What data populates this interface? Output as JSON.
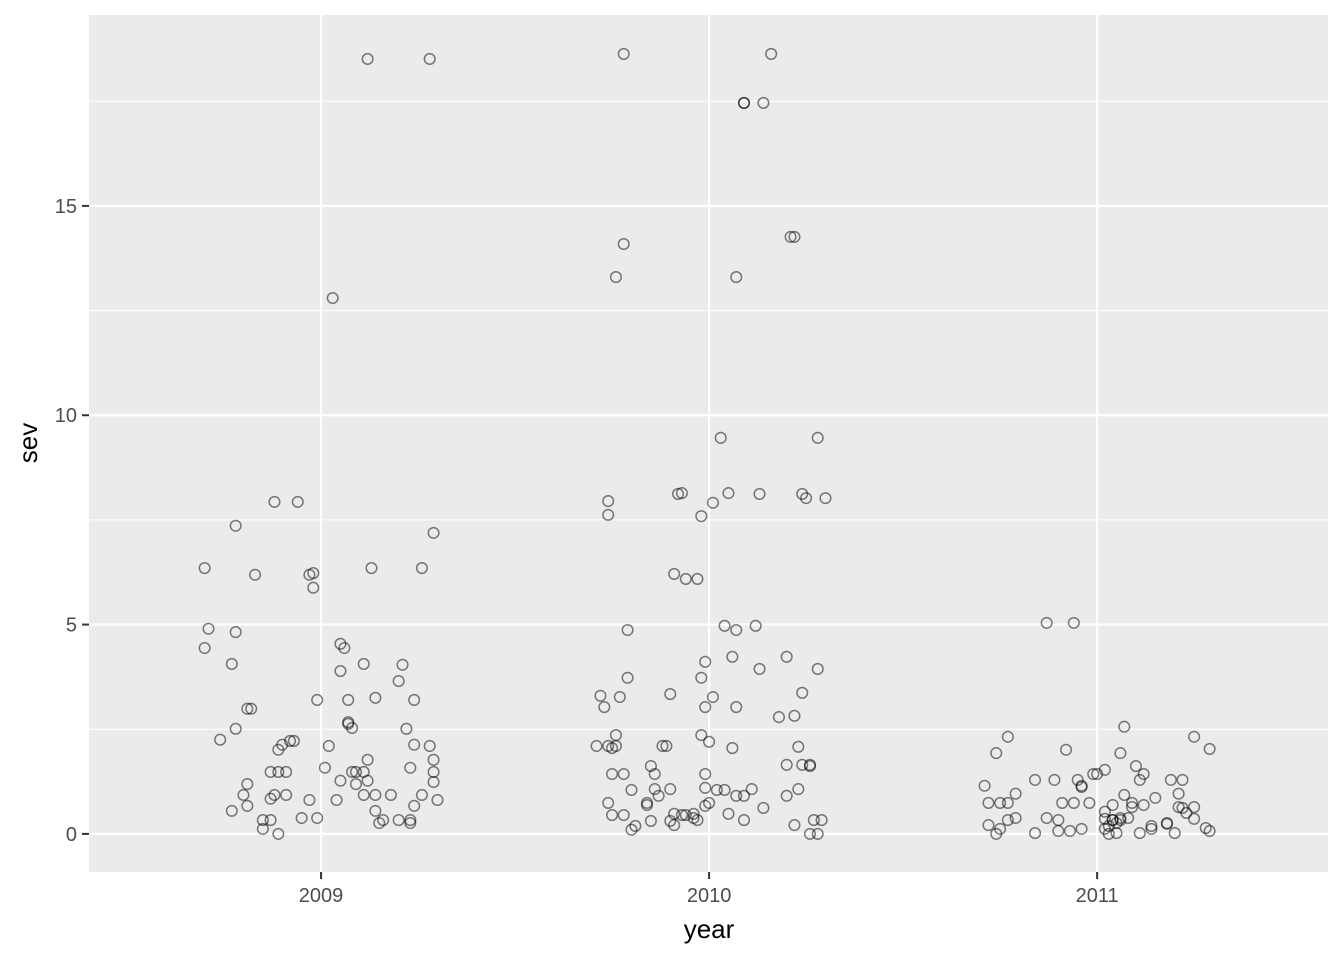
{
  "chart_data": {
    "type": "scatter",
    "x_label": "year",
    "y_label": "sev",
    "xlim": [
      2008.402,
      2011.595
    ],
    "ylim": [
      -0.91,
      19.56
    ],
    "xticks": [
      2009,
      2010,
      2011
    ],
    "yticks": [
      0,
      5,
      10,
      15
    ],
    "y_minor_ticks": [
      2.5,
      7.5,
      12.5,
      17.5
    ],
    "grid": true,
    "color": "#000000",
    "x": [
      2008.7,
      2008.7,
      2008.71,
      2008.74,
      2008.77,
      2008.78,
      2008.78,
      2008.78,
      2008.77,
      2008.8,
      2008.81,
      2008.82,
      2008.81,
      2008.81,
      2008.83,
      2008.85,
      2008.85,
      2008.87,
      2008.87,
      2008.87,
      2008.88,
      2008.88,
      2008.89,
      2008.89,
      2008.9,
      2008.89,
      2008.91,
      2008.91,
      2008.92,
      2008.93,
      2008.94,
      2008.95,
      2008.97,
      2008.97,
      2008.98,
      2008.98,
      2008.99,
      2008.99,
      2009.01,
      2009.02,
      2009.03,
      2009.04,
      2009.05,
      2009.05,
      2009.05,
      2009.06,
      2009.07,
      2009.07,
      2009.07,
      2009.08,
      2009.08,
      2009.09,
      2009.09,
      2009.11,
      2009.11,
      2009.12,
      2009.12,
      2009.13,
      2009.11,
      2009.12,
      2009.14,
      2009.14,
      2009.14,
      2009.15,
      2009.16,
      2009.18,
      2009.2,
      2009.2,
      2009.21,
      2009.22,
      2009.23,
      2009.23,
      2009.23,
      2009.24,
      2009.24,
      2009.24,
      2009.26,
      2009.26,
      2009.28,
      2009.29,
      2009.28,
      2009.29,
      2009.29,
      2009.29,
      2009.3,
      2009.71,
      2009.72,
      2009.73,
      2009.74,
      2009.74,
      2009.74,
      2009.74,
      2009.75,
      2009.75,
      2009.75,
      2009.76,
      2009.76,
      2009.77,
      2009.78,
      2009.78,
      2009.78,
      2009.78,
      2009.76,
      2009.79,
      2009.79,
      2009.8,
      2009.8,
      2009.81,
      2009.84,
      2009.84,
      2009.85,
      2009.85,
      2009.86,
      2009.86,
      2009.87,
      2009.88,
      2009.89,
      2009.9,
      2009.9,
      2009.9,
      2009.91,
      2009.91,
      2009.91,
      2009.92,
      2009.93,
      2009.93,
      2009.94,
      2009.94,
      2009.96,
      2009.96,
      2009.97,
      2009.97,
      2009.98,
      2009.98,
      2009.98,
      2009.99,
      2009.99,
      2009.99,
      2009.99,
      2009.99,
      2010.0,
      2010.0,
      2010.01,
      2010.01,
      2010.02,
      2010.03,
      2010.04,
      2010.04,
      2010.05,
      2010.05,
      2010.06,
      2010.06,
      2010.07,
      2010.07,
      2010.07,
      2010.07,
      2010.09,
      2010.09,
      2010.09,
      2010.09,
      2010.11,
      2010.12,
      2010.13,
      2010.13,
      2010.14,
      2010.14,
      2010.16,
      2010.18,
      2010.2,
      2010.2,
      2010.2,
      2010.21,
      2010.22,
      2010.22,
      2010.22,
      2010.23,
      2010.23,
      2010.24,
      2010.24,
      2010.24,
      2010.25,
      2010.26,
      2010.26,
      2010.26,
      2010.27,
      2010.28,
      2010.28,
      2010.28,
      2010.29,
      2010.3,
      2010.71,
      2010.72,
      2010.72,
      2010.74,
      2010.74,
      2010.75,
      2010.75,
      2010.77,
      2010.77,
      2010.77,
      2010.79,
      2010.79,
      2010.84,
      2010.84,
      2010.87,
      2010.87,
      2010.89,
      2010.9,
      2010.9,
      2010.91,
      2010.92,
      2010.93,
      2010.94,
      2010.94,
      2010.95,
      2010.96,
      2010.96,
      2010.96,
      2010.98,
      2010.99,
      2011.0,
      2011.02,
      2011.02,
      2011.02,
      2011.02,
      2011.03,
      2011.03,
      2011.04,
      2011.04,
      2011.04,
      2011.05,
      2011.05,
      2011.06,
      2011.06,
      2011.06,
      2011.07,
      2011.07,
      2011.08,
      2011.09,
      2011.09,
      2011.1,
      2011.11,
      2011.11,
      2011.12,
      2011.12,
      2011.14,
      2011.14,
      2011.15,
      2011.18,
      2011.18,
      2011.19,
      2011.2,
      2011.21,
      2011.21,
      2011.22,
      2011.22,
      2011.23,
      2011.25,
      2011.25,
      2011.25,
      2011.28,
      2011.29,
      2011.29
    ],
    "values": [
      6.35,
      4.44,
      4.9,
      2.25,
      4.06,
      7.36,
      4.82,
      2.51,
      0.55,
      0.93,
      2.99,
      2.99,
      0.67,
      1.19,
      6.19,
      0.33,
      0.12,
      0.33,
      1.48,
      0.84,
      0.93,
      7.93,
      1.48,
      2.01,
      2.13,
      0,
      0.93,
      1.48,
      2.22,
      2.22,
      7.93,
      0.38,
      0.81,
      6.19,
      6.23,
      5.88,
      3.2,
      0.38,
      1.58,
      2.1,
      12.8,
      0.81,
      4.54,
      3.89,
      1.27,
      4.44,
      3.2,
      2.67,
      2.63,
      2.53,
      1.48,
      1.19,
      1.48,
      4.06,
      0.93,
      18.51,
      1.77,
      6.35,
      1.48,
      1.27,
      0.55,
      3.25,
      0.93,
      0.26,
      0.33,
      0.93,
      3.65,
      0.33,
      4.04,
      2.51,
      1.58,
      0.26,
      0.33,
      3.2,
      0.67,
      2.13,
      0.93,
      6.35,
      18.51,
      7.19,
      2.1,
      1.77,
      1.48,
      1.24,
      0.81,
      2.1,
      3.3,
      3.03,
      2.1,
      7.95,
      7.62,
      0.74,
      2.05,
      0.45,
      1.43,
      2.36,
      2.1,
      3.27,
      0.45,
      18.63,
      1.43,
      14.09,
      13.3,
      3.73,
      4.87,
      1.05,
      0.1,
      0.19,
      0.69,
      0.74,
      0.31,
      1.62,
      1.43,
      1.07,
      0.91,
      2.1,
      2.1,
      1.07,
      0.31,
      3.34,
      0.21,
      6.21,
      0.48,
      8.12,
      8.14,
      0.45,
      6.09,
      0.45,
      0.38,
      0.48,
      0.33,
      6.09,
      3.73,
      2.36,
      7.59,
      3.03,
      0.67,
      1.43,
      4.11,
      1.1,
      2.2,
      0.74,
      3.27,
      7.91,
      1.05,
      9.46,
      1.05,
      4.97,
      8.14,
      0.48,
      4.23,
      2.05,
      3.03,
      13.3,
      4.87,
      0.91,
      17.46,
      17.46,
      0.33,
      0.91,
      1.07,
      4.97,
      3.94,
      8.12,
      0.62,
      17.46,
      18.63,
      2.79,
      0.91,
      1.65,
      4.23,
      14.26,
      14.26,
      2.82,
      0.21,
      1.07,
      2.08,
      1.65,
      8.12,
      3.37,
      8.02,
      1.65,
      1.62,
      0,
      0.33,
      9.46,
      3.94,
      0,
      0.33,
      8.02,
      1.15,
      0.74,
      0.21,
      0,
      1.93,
      0.74,
      0.12,
      0.33,
      0.74,
      2.32,
      0.96,
      0.38,
      0.02,
      1.29,
      5.04,
      0.38,
      1.29,
      0.33,
      0.07,
      0.74,
      2.01,
      0.07,
      5.04,
      0.74,
      1.29,
      1.12,
      1.15,
      0.12,
      0.74,
      1.43,
      1.43,
      0.36,
      0.12,
      1.53,
      0.53,
      0,
      0.19,
      0.33,
      0.69,
      0.33,
      0.02,
      0.26,
      0.33,
      0.38,
      1.93,
      2.56,
      0.93,
      0.38,
      0.74,
      0.64,
      1.62,
      0.02,
      1.29,
      0.69,
      1.43,
      0.12,
      0.19,
      0.86,
      0.24,
      0.26,
      1.29,
      0.02,
      0.64,
      0.96,
      0.62,
      1.29,
      0.5,
      0.64,
      2.32,
      0.36,
      0.14,
      2.03,
      0.07
    ]
  }
}
